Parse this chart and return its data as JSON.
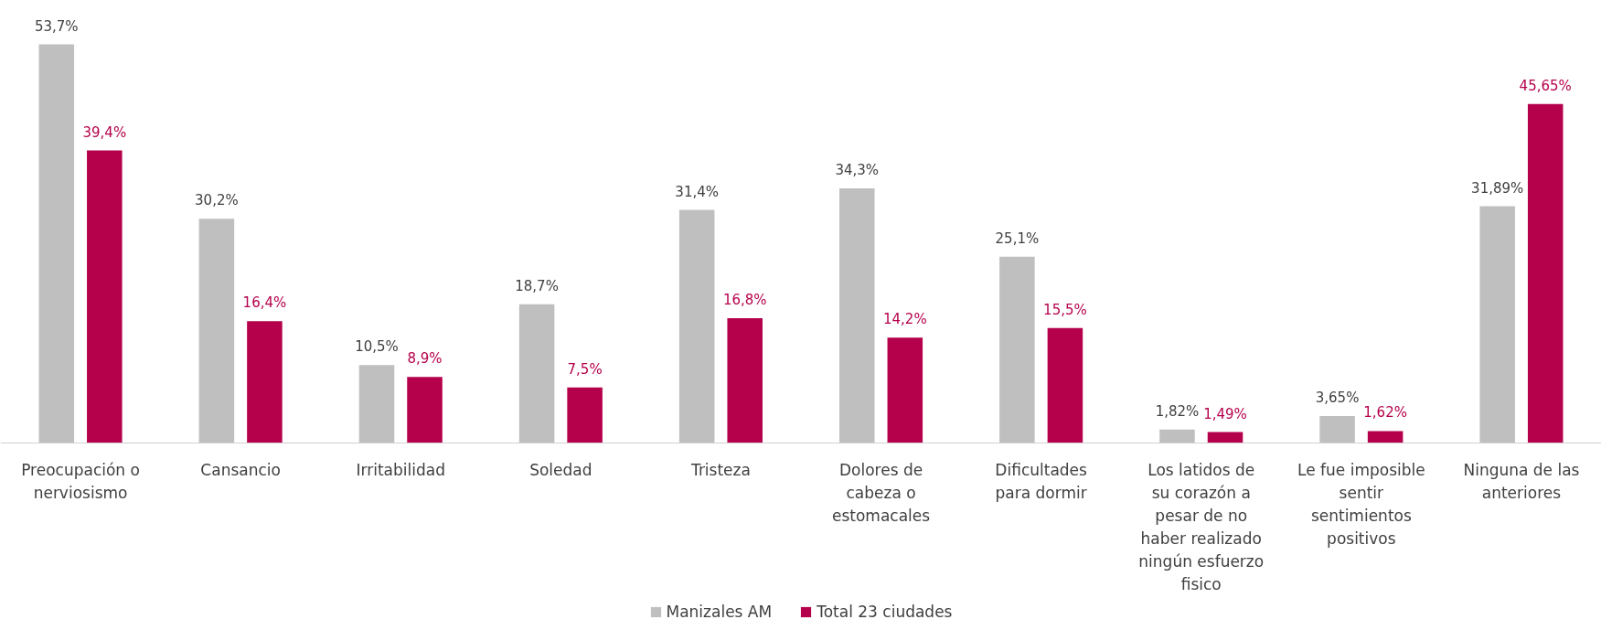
{
  "chart_data": {
    "type": "bar",
    "categories": [
      "Preocupación o nerviosismo",
      "Cansancio",
      "Irritabilidad",
      "Soledad",
      "Tristeza",
      "Dolores de cabeza o estomacales",
      "Dificultades para dormir",
      "Los latidos de su corazón a pesar de no haber realizado ningún esfuerzo fisico",
      "Le fue imposible sentir sentimientos positivos",
      "Ninguna de las anteriores"
    ],
    "series": [
      {
        "name": "Manizales AM",
        "color": "#bfbfbf",
        "values": [
          53.7,
          30.2,
          10.5,
          18.7,
          31.4,
          34.3,
          25.1,
          1.82,
          3.65,
          31.89
        ],
        "value_labels": [
          "53,7%",
          "30,2%",
          "10,5%",
          "18,7%",
          "31,4%",
          "34,3%",
          "25,1%",
          "1,82%",
          "3,65%",
          "31,89%"
        ]
      },
      {
        "name": "Total 23 ciudades",
        "color": "#b5004b",
        "values": [
          39.4,
          16.4,
          8.9,
          7.5,
          16.8,
          14.2,
          15.5,
          1.49,
          1.62,
          45.65
        ],
        "value_labels": [
          "39,4%",
          "16,4%",
          "8,9%",
          "7,5%",
          "16,8%",
          "14,2%",
          "15,5%",
          "1,49%",
          "1,62%",
          "45,65%"
        ]
      }
    ],
    "legend": "bottom",
    "grid": false
  }
}
